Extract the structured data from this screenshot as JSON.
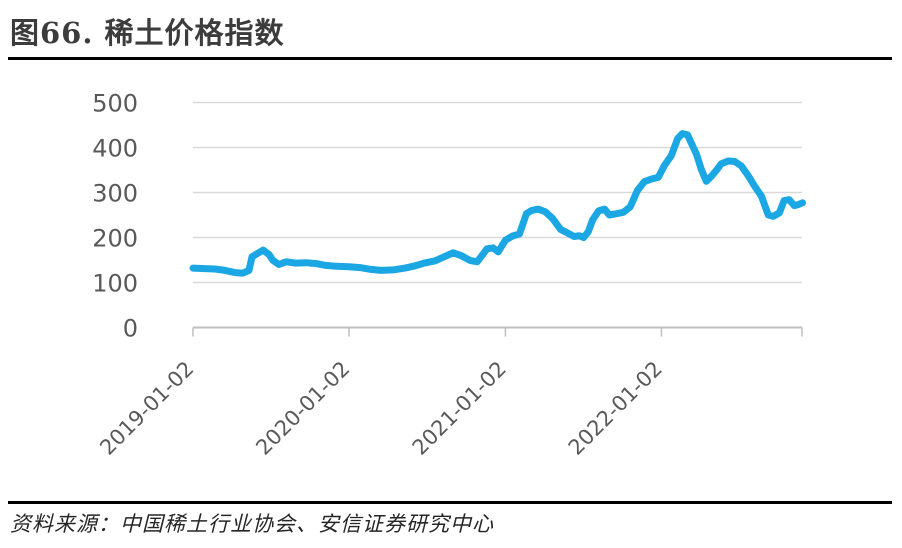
{
  "figure": {
    "title": "图66. 稀土价格指数",
    "source": "资料来源：中国稀土行业协会、安信证券研究中心"
  },
  "chart_data": {
    "type": "line",
    "title": "稀土价格指数",
    "xlabel": "",
    "ylabel": "",
    "ylim": [
      0,
      500
    ],
    "y_ticks": [
      0,
      100,
      200,
      300,
      400,
      500
    ],
    "x_tick_labels": [
      "2019-01-02",
      "2020-01-02",
      "2021-01-02",
      "2022-01-02"
    ],
    "x_range": [
      "2019-01-02",
      "2022-11-28"
    ],
    "grid": "horizontal",
    "legend": "none",
    "colors": {
      "grid": "#D9D9D9",
      "axis": "#BFBFBF",
      "tick_label": "#595959"
    },
    "series": [
      {
        "name": "稀土价格指数",
        "color": "#1BA7E3",
        "points": [
          [
            "2019-01-02",
            132
          ],
          [
            "2019-01-30",
            131
          ],
          [
            "2019-02-22",
            130
          ],
          [
            "2019-03-18",
            127
          ],
          [
            "2019-04-10",
            122
          ],
          [
            "2019-04-29",
            121
          ],
          [
            "2019-05-13",
            127
          ],
          [
            "2019-05-20",
            157
          ],
          [
            "2019-06-01",
            164
          ],
          [
            "2019-06-15",
            172
          ],
          [
            "2019-06-29",
            162
          ],
          [
            "2019-07-08",
            149
          ],
          [
            "2019-07-22",
            140
          ],
          [
            "2019-08-08",
            146
          ],
          [
            "2019-08-31",
            143
          ],
          [
            "2019-09-23",
            144
          ],
          [
            "2019-10-17",
            142
          ],
          [
            "2019-11-09",
            138
          ],
          [
            "2019-12-03",
            136
          ],
          [
            "2020-01-02",
            135
          ],
          [
            "2020-01-28",
            133
          ],
          [
            "2020-02-22",
            129
          ],
          [
            "2020-03-17",
            127
          ],
          [
            "2020-04-14",
            128
          ],
          [
            "2020-05-12",
            132
          ],
          [
            "2020-06-04",
            137
          ],
          [
            "2020-06-26",
            143
          ],
          [
            "2020-07-21",
            148
          ],
          [
            "2020-08-11",
            157
          ],
          [
            "2020-09-01",
            166
          ],
          [
            "2020-09-20",
            160
          ],
          [
            "2020-10-11",
            149
          ],
          [
            "2020-10-28",
            146
          ],
          [
            "2020-11-20",
            175
          ],
          [
            "2020-12-04",
            177
          ],
          [
            "2020-12-16",
            168
          ],
          [
            "2021-01-02",
            194
          ],
          [
            "2021-01-18",
            203
          ],
          [
            "2021-02-04",
            208
          ],
          [
            "2021-02-20",
            253
          ],
          [
            "2021-03-04",
            260
          ],
          [
            "2021-03-20",
            263
          ],
          [
            "2021-04-05",
            257
          ],
          [
            "2021-04-22",
            243
          ],
          [
            "2021-05-11",
            218
          ],
          [
            "2021-05-29",
            209
          ],
          [
            "2021-06-12",
            202
          ],
          [
            "2021-06-24",
            204
          ],
          [
            "2021-07-04",
            200
          ],
          [
            "2021-07-15",
            213
          ],
          [
            "2021-07-25",
            239
          ],
          [
            "2021-08-08",
            259
          ],
          [
            "2021-08-22",
            263
          ],
          [
            "2021-09-02",
            250
          ],
          [
            "2021-09-19",
            253
          ],
          [
            "2021-10-05",
            256
          ],
          [
            "2021-10-21",
            268
          ],
          [
            "2021-11-07",
            305
          ],
          [
            "2021-11-23",
            324
          ],
          [
            "2021-12-10",
            330
          ],
          [
            "2021-12-26",
            334
          ],
          [
            "2022-01-09",
            360
          ],
          [
            "2022-01-25",
            382
          ],
          [
            "2022-02-09",
            420
          ],
          [
            "2022-02-20",
            431
          ],
          [
            "2022-03-04",
            428
          ],
          [
            "2022-03-13",
            410
          ],
          [
            "2022-03-25",
            385
          ],
          [
            "2022-04-05",
            352
          ],
          [
            "2022-04-17",
            325
          ],
          [
            "2022-04-29",
            336
          ],
          [
            "2022-05-11",
            350
          ],
          [
            "2022-05-22",
            364
          ],
          [
            "2022-06-07",
            370
          ],
          [
            "2022-06-22",
            369
          ],
          [
            "2022-07-08",
            359
          ],
          [
            "2022-07-25",
            336
          ],
          [
            "2022-08-08",
            314
          ],
          [
            "2022-08-24",
            292
          ],
          [
            "2022-09-09",
            250
          ],
          [
            "2022-09-21",
            247
          ],
          [
            "2022-10-05",
            255
          ],
          [
            "2022-10-16",
            282
          ],
          [
            "2022-10-28",
            284
          ],
          [
            "2022-11-09",
            271
          ],
          [
            "2022-11-18",
            273
          ],
          [
            "2022-11-28",
            277
          ]
        ]
      }
    ]
  }
}
